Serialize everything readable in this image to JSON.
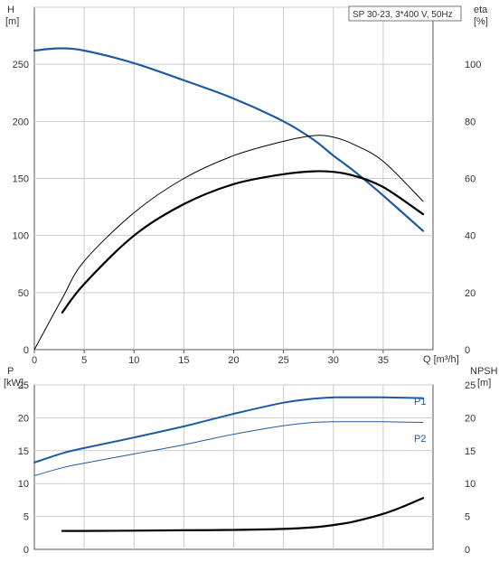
{
  "title": "SP 30-23, 3*400 V, 50Hz",
  "colors": {
    "blue": "#1f5aa0",
    "black": "#000000",
    "grid": "#cccccc",
    "axis": "#555555"
  },
  "chart_data": [
    {
      "type": "line",
      "title": "SP 30-23, 3*400 V, 50Hz",
      "xlabel": "Q [m³/h]",
      "ylabel_left": {
        "name": "H",
        "unit": "[m]"
      },
      "ylabel_right": {
        "name": "eta",
        "unit": "[%]"
      },
      "xlim": [
        0,
        40
      ],
      "ylim_left": [
        0,
        300
      ],
      "ylim_right": [
        0,
        120
      ],
      "xticks": [
        0,
        5,
        10,
        15,
        20,
        25,
        30,
        35
      ],
      "yticks_left": [
        0,
        50,
        100,
        150,
        200,
        250
      ],
      "yticks_right": [
        0,
        20,
        40,
        60,
        80,
        100
      ],
      "grid": true,
      "series": [
        {
          "axis": "left",
          "color": "#1f5aa0",
          "width": 2.2,
          "x": [
            0,
            2.5,
            5,
            10,
            15,
            20,
            25,
            28,
            30,
            32,
            35,
            39
          ],
          "y": [
            262,
            264,
            262,
            251,
            236,
            220,
            200,
            184,
            170,
            157,
            135,
            104
          ]
        },
        {
          "axis": "right",
          "color": "#000000",
          "width": 1.0,
          "x": [
            0,
            2.8,
            5,
            10,
            15,
            20,
            25,
            28,
            30,
            32,
            35,
            39
          ],
          "y": [
            0,
            18,
            31,
            48,
            60,
            68,
            73,
            75,
            74.5,
            72,
            66,
            52
          ]
        },
        {
          "axis": "right",
          "color": "#000000",
          "width": 2.2,
          "x": [
            2.8,
            5,
            10,
            15,
            20,
            25,
            28,
            30,
            32,
            35,
            39
          ],
          "y": [
            13,
            23,
            40,
            51,
            58,
            61.5,
            62.5,
            62.3,
            61,
            57,
            47.5
          ]
        }
      ]
    },
    {
      "type": "line",
      "ylabel_left": {
        "name": "P",
        "unit": "[kW]"
      },
      "ylabel_right": {
        "name": "NPSH",
        "unit": "[m]"
      },
      "xlim": [
        0,
        40
      ],
      "ylim_left": [
        0,
        25
      ],
      "ylim_right": [
        0,
        25
      ],
      "yticks_left": [
        0,
        5,
        10,
        15,
        20,
        25
      ],
      "yticks_right": [
        0,
        5,
        10,
        15,
        20,
        25
      ],
      "grid": true,
      "series": [
        {
          "name": "P1",
          "axis": "left",
          "color": "#1f5aa0",
          "width": 2.0,
          "x": [
            0,
            2.8,
            5,
            10,
            15,
            20,
            25,
            28,
            30,
            32,
            35,
            39
          ],
          "y": [
            13.2,
            14.6,
            15.4,
            17.0,
            18.7,
            20.6,
            22.3,
            22.9,
            23.1,
            23.1,
            23.1,
            23.0
          ]
        },
        {
          "name": "P2",
          "axis": "left",
          "color": "#1f5aa0",
          "width": 1.0,
          "x": [
            0,
            2.8,
            5,
            10,
            15,
            20,
            25,
            28,
            30,
            32,
            35,
            39
          ],
          "y": [
            11.2,
            12.4,
            13.1,
            14.5,
            15.9,
            17.5,
            18.8,
            19.3,
            19.4,
            19.4,
            19.4,
            19.3
          ]
        },
        {
          "axis": "right",
          "color": "#000000",
          "width": 2.2,
          "x": [
            2.8,
            5,
            10,
            15,
            20,
            25,
            28,
            30,
            32,
            35,
            37,
            39
          ],
          "y": [
            2.8,
            2.8,
            2.85,
            2.9,
            2.95,
            3.1,
            3.35,
            3.7,
            4.2,
            5.4,
            6.5,
            7.8
          ]
        }
      ]
    }
  ]
}
